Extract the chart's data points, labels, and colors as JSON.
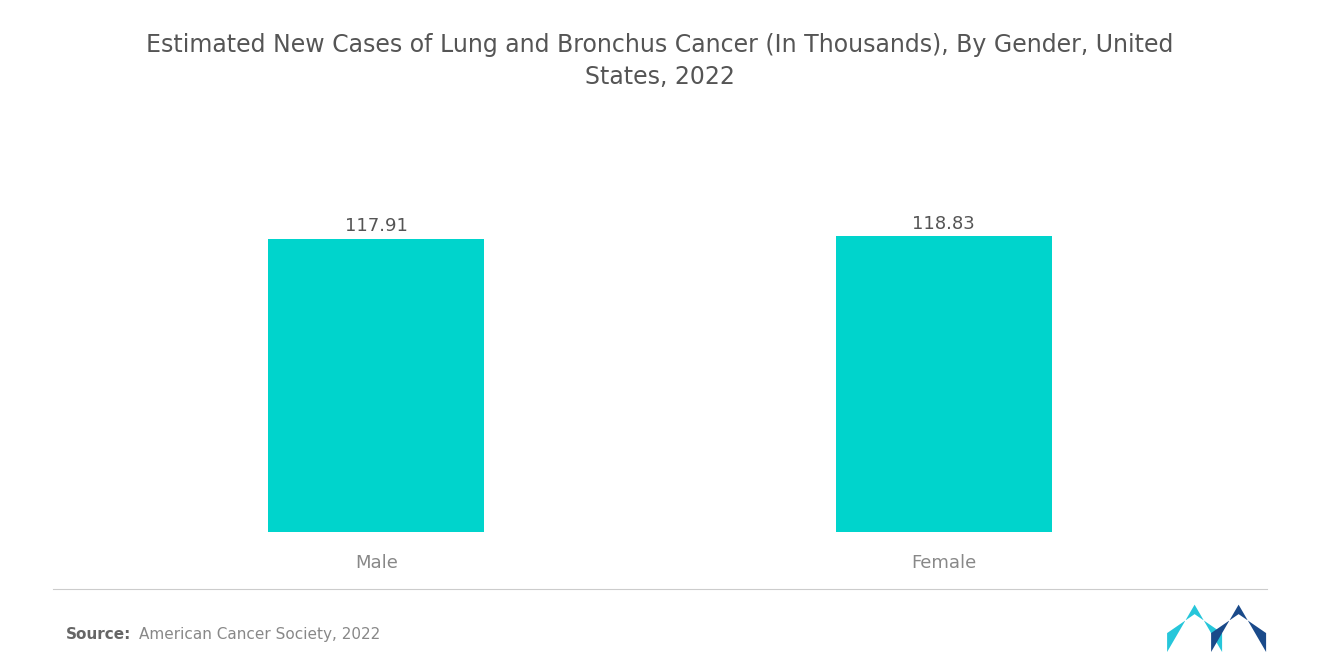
{
  "title": "Estimated New Cases of Lung and Bronchus Cancer (In Thousands), By Gender, United\nStates, 2022",
  "categories": [
    "Male",
    "Female"
  ],
  "values": [
    117.91,
    118.83
  ],
  "bar_color": "#00D4CC",
  "value_labels": [
    "117.91",
    "118.83"
  ],
  "source_bold": "Source:",
  "source_text": "  American Cancer Society, 2022",
  "background_color": "#ffffff",
  "title_color": "#555555",
  "label_color": "#888888",
  "value_color": "#555555",
  "title_fontsize": 17,
  "label_fontsize": 13,
  "value_fontsize": 13,
  "source_fontsize": 11,
  "ylim": [
    0,
    155
  ],
  "bar_width": 0.38
}
